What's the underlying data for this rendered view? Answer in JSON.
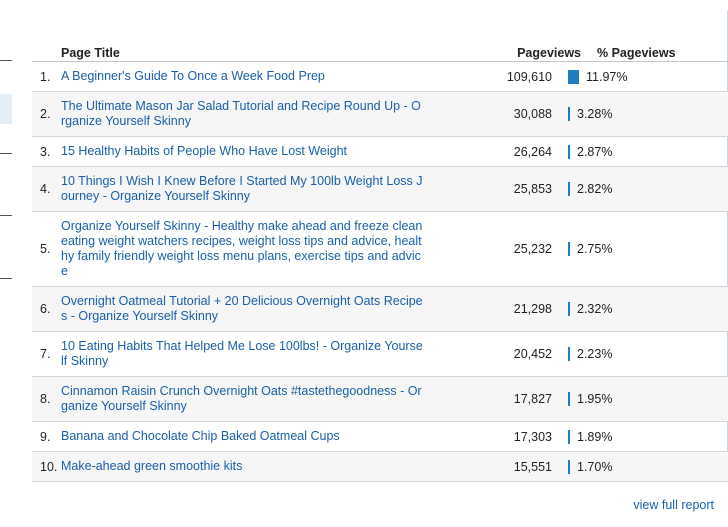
{
  "table": {
    "headers": {
      "title": "Page Title",
      "pageviews": "Pageviews",
      "pct": "% Pageviews"
    },
    "rows": [
      {
        "num": "1.",
        "title": "A Beginner's Guide To Once a Week Food Prep",
        "pageviews": "109,610",
        "pct": "11.97%",
        "share": 0.1197
      },
      {
        "num": "2.",
        "title": "The Ultimate Mason Jar Salad Tutorial and Recipe Round Up - Organize Yourself Skinny",
        "pageviews": "30,088",
        "pct": "3.28%",
        "share": 0.0328
      },
      {
        "num": "3.",
        "title": "15 Healthy Habits of People Who Have Lost Weight",
        "pageviews": "26,264",
        "pct": "2.87%",
        "share": 0.0287
      },
      {
        "num": "4.",
        "title": "10 Things I Wish I Knew Before I Started My 100lb Weight Loss Journey - Organize Yourself Skinny",
        "pageviews": "25,853",
        "pct": "2.82%",
        "share": 0.0282
      },
      {
        "num": "5.",
        "title": "Organize Yourself Skinny - Healthy make ahead and freeze clean eating weight watchers recipes, weight loss tips and advice, healthy family friendly weight loss menu plans, exercise tips and advice",
        "pageviews": "25,232",
        "pct": "2.75%",
        "share": 0.0275
      },
      {
        "num": "6.",
        "title": "Overnight Oatmeal Tutorial + 20 Delicious Overnight Oats Recipes - Organize Yourself Skinny",
        "pageviews": "21,298",
        "pct": "2.32%",
        "share": 0.0232
      },
      {
        "num": "7.",
        "title": "10 Eating Habits That Helped Me Lose 100lbs! - Organize Yourself Skinny",
        "pageviews": "20,452",
        "pct": "2.23%",
        "share": 0.0223
      },
      {
        "num": "8.",
        "title": "Cinnamon Raisin Crunch Overnight Oats #tastethegoodness - Organize Yourself Skinny",
        "pageviews": "17,827",
        "pct": "1.95%",
        "share": 0.0195
      },
      {
        "num": "9.",
        "title": "Banana and Chocolate Chip Baked Oatmeal Cups",
        "pageviews": "17,303",
        "pct": "1.89%",
        "share": 0.0189
      },
      {
        "num": "10.",
        "title": "Make-ahead green smoothie kits",
        "pageviews": "15,551",
        "pct": "1.70%",
        "share": 0.017
      }
    ]
  },
  "footer": {
    "link": "view full report"
  }
}
